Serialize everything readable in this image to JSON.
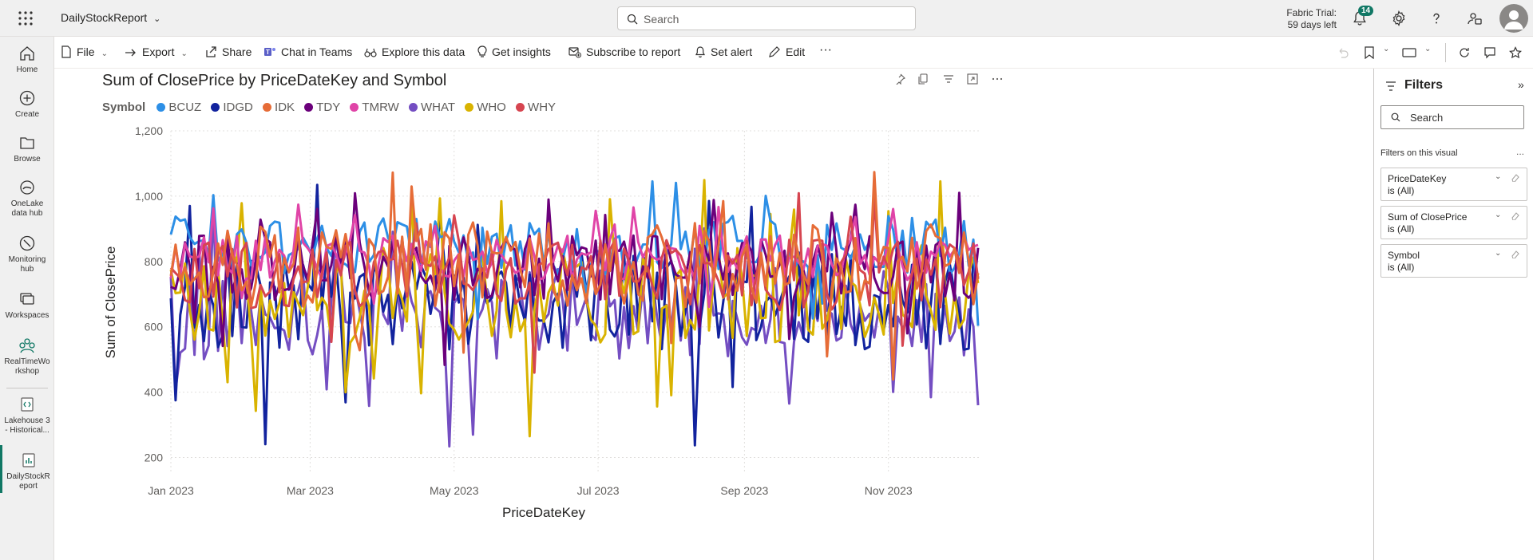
{
  "app": {
    "title": "DailyStockReport",
    "search_placeholder": "Search"
  },
  "trial": {
    "line1": "Fabric Trial:",
    "line2": "59 days left"
  },
  "notifications": {
    "count": "14"
  },
  "nav": [
    {
      "label": "Home"
    },
    {
      "label": "Create"
    },
    {
      "label": "Browse"
    },
    {
      "label": "OneLake data hub"
    },
    {
      "label": "Monitoring hub"
    },
    {
      "label": "Workspaces"
    },
    {
      "label": "RealTimeWorkshop"
    },
    {
      "label": "Lakehouse 3 - Historical..."
    },
    {
      "label": "DailyStockReport"
    }
  ],
  "toolbar": {
    "file": "File",
    "export": "Export",
    "share": "Share",
    "chat": "Chat in Teams",
    "explore": "Explore this data",
    "insights": "Get insights",
    "subscribe": "Subscribe to report",
    "alert": "Set alert",
    "edit": "Edit",
    "more": "···"
  },
  "filters": {
    "title": "Filters",
    "search_placeholder": "Search",
    "section": "Filters on this visual",
    "more": "...",
    "cards": [
      {
        "name": "PriceDateKey",
        "value": "is (All)"
      },
      {
        "name": "Sum of ClosePrice",
        "value": "is (All)"
      },
      {
        "name": "Symbol",
        "value": "is (All)"
      }
    ]
  },
  "colors": {
    "BCUZ": "#2d8fe6",
    "IDGD": "#12239e",
    "IDK": "#e66c37",
    "TDY": "#6b007b",
    "TMRW": "#e044a7",
    "WHAT": "#744ec2",
    "WHO": "#d9b300",
    "WHY": "#d64550",
    "accent": "#117865"
  },
  "chart_data": {
    "type": "line",
    "title": "Sum of ClosePrice by PriceDateKey and Symbol",
    "xlabel": "PriceDateKey",
    "ylabel": "Sum of ClosePrice",
    "legend_title": "Symbol",
    "legend_position": "top-left",
    "grid": true,
    "ylim": [
      150,
      1200
    ],
    "yticks": [
      200,
      400,
      600,
      800,
      1000,
      1200
    ],
    "xticks": [
      "Jan 2023",
      "Mar 2023",
      "May 2023",
      "Jul 2023",
      "Sep 2023",
      "Nov 2023"
    ],
    "xrange": [
      "2023-01-01",
      "2023-12-10"
    ],
    "series": [
      {
        "name": "BCUZ",
        "center": 850,
        "spread": 90
      },
      {
        "name": "IDGD",
        "center": 680,
        "spread": 150
      },
      {
        "name": "IDK",
        "center": 790,
        "spread": 130
      },
      {
        "name": "TDY",
        "center": 780,
        "spread": 100
      },
      {
        "name": "TMRW",
        "center": 810,
        "spread": 70
      },
      {
        "name": "WHAT",
        "center": 640,
        "spread": 140
      },
      {
        "name": "WHO",
        "center": 700,
        "spread": 150
      },
      {
        "name": "WHY",
        "center": 760,
        "spread": 110
      }
    ]
  }
}
